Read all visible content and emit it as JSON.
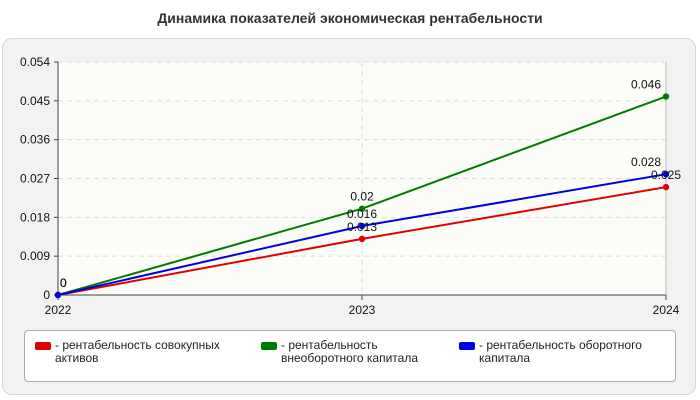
{
  "chart_data": {
    "type": "line",
    "title": "Динамика показателей экономическая рентабельности",
    "xlabel": "",
    "ylabel": "",
    "x": [
      "2022",
      "2023",
      "2024"
    ],
    "ylim": [
      0,
      0.054
    ],
    "yticks": [
      "0",
      "0.009",
      "0.018",
      "0.027",
      "0.036",
      "0.045",
      "0.054"
    ],
    "grid": true,
    "legend_position": "bottom",
    "series": [
      {
        "name": "- рентабельность совокупных активов",
        "color": "#e00000",
        "values": [
          0,
          0.013,
          0.025
        ],
        "labels": [
          "0",
          "0.013",
          "0.025"
        ]
      },
      {
        "name": "- рентабельность внеоборотного капитала",
        "color": "#007a00",
        "values": [
          0,
          0.02,
          0.046
        ],
        "labels": [
          "0",
          "0.02",
          "0.046"
        ]
      },
      {
        "name": "- рентабельность оборотного капитала",
        "color": "#0000e0",
        "values": [
          0,
          0.016,
          0.028
        ],
        "labels": [
          "0",
          "0.016",
          "0.028"
        ]
      }
    ]
  }
}
